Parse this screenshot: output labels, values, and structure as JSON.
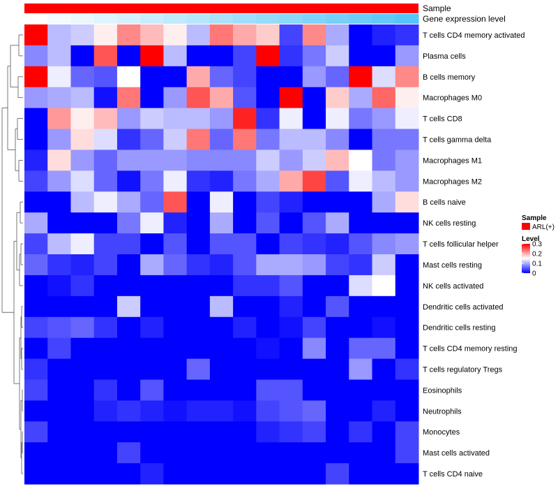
{
  "chart_data": {
    "type": "heatmap",
    "title": "",
    "annotations": [
      {
        "name": "Sample",
        "color": "#FF0000"
      },
      {
        "name": "Gene expression level",
        "gradient": [
          "#FFFFFF",
          "#4FC3F7"
        ]
      }
    ],
    "rows": [
      "T cells CD4 memory activated",
      "Plasma cells",
      "B cells memory",
      "Macrophages M0",
      "T cells CD8",
      "T cells gamma delta",
      "Macrophages M1",
      "Macrophages M2",
      "B cells naive",
      "NK cells resting",
      "T cells follicular helper",
      "Mast cells resting",
      "NK cells activated",
      "Dendritic cells activated",
      "Dendritic cells resting",
      "T cells CD4 memory resting",
      "T cells regulatory  Tregs",
      "Eosinophils",
      "Neutrophils",
      "Monocytes",
      "Mast cells activated",
      "T cells CD4 naive"
    ],
    "n_columns": 17,
    "values": [
      [
        0.3,
        0.11,
        0.12,
        0.16,
        0.22,
        0.19,
        0.16,
        0.11,
        0.23,
        0.2,
        0.18,
        0.04,
        0.22,
        0.1,
        0.0,
        0.02,
        0.03
      ],
      [
        0.08,
        0.11,
        0.0,
        0.25,
        0.0,
        0.3,
        0.11,
        0.0,
        0.0,
        0.04,
        0.3,
        0.03,
        0.07,
        0.12,
        0.0,
        0.0,
        0.09
      ],
      [
        0.3,
        0.14,
        0.06,
        0.05,
        0.15,
        0.0,
        0.0,
        0.2,
        0.06,
        0.04,
        0.0,
        0.0,
        0.09,
        0.06,
        0.3,
        0.13,
        0.22
      ],
      [
        0.09,
        0.1,
        0.11,
        0.01,
        0.23,
        0.0,
        0.09,
        0.25,
        0.2,
        0.05,
        0.0,
        0.3,
        0.0,
        0.18,
        0.1,
        0.24,
        0.16
      ],
      [
        0.0,
        0.21,
        0.16,
        0.19,
        0.09,
        0.12,
        0.11,
        0.11,
        0.09,
        0.28,
        0.03,
        0.14,
        0.0,
        0.14,
        0.07,
        0.09,
        0.14
      ],
      [
        0.0,
        0.09,
        0.17,
        0.13,
        0.03,
        0.06,
        0.12,
        0.23,
        0.06,
        0.23,
        0.07,
        0.11,
        0.11,
        0.08,
        0.0,
        0.07,
        0.07
      ],
      [
        0.02,
        0.17,
        0.09,
        0.06,
        0.09,
        0.09,
        0.09,
        0.08,
        0.08,
        0.08,
        0.12,
        0.09,
        0.12,
        0.19,
        0.15,
        0.07,
        0.09
      ],
      [
        0.04,
        0.09,
        0.13,
        0.06,
        0.01,
        0.07,
        0.14,
        0.03,
        0.02,
        0.07,
        0.1,
        0.2,
        0.26,
        0.05,
        0.14,
        0.11,
        0.09
      ],
      [
        0.0,
        0.0,
        0.11,
        0.14,
        0.1,
        0.06,
        0.25,
        0.0,
        0.14,
        0.0,
        0.04,
        0.02,
        0.0,
        0.0,
        0.0,
        0.1,
        0.17
      ],
      [
        0.1,
        0.0,
        0.0,
        0.0,
        0.07,
        0.14,
        0.02,
        0.0,
        0.1,
        0.0,
        0.05,
        0.0,
        0.05,
        0.1,
        0.0,
        0.0,
        0.0
      ],
      [
        0.04,
        0.11,
        0.14,
        0.04,
        0.04,
        0.0,
        0.05,
        0.0,
        0.05,
        0.05,
        0.0,
        0.04,
        0.03,
        0.02,
        0.05,
        0.08,
        0.09
      ],
      [
        0.06,
        0.03,
        0.02,
        0.04,
        0.0,
        0.1,
        0.06,
        0.03,
        0.02,
        0.05,
        0.1,
        0.1,
        0.09,
        0.04,
        0.03,
        0.12,
        0.0
      ],
      [
        0.0,
        0.01,
        0.03,
        0.0,
        0.0,
        0.0,
        0.0,
        0.0,
        0.0,
        0.03,
        0.03,
        0.05,
        0.0,
        0.0,
        0.13,
        0.15,
        0.0
      ],
      [
        0.0,
        0.0,
        0.0,
        0.0,
        0.12,
        0.0,
        0.0,
        0.0,
        0.11,
        0.0,
        0.0,
        0.02,
        0.0,
        0.05,
        0.0,
        0.0,
        0.0
      ],
      [
        0.04,
        0.05,
        0.06,
        0.03,
        0.0,
        0.02,
        0.0,
        0.0,
        0.0,
        0.02,
        0.0,
        0.01,
        0.04,
        0.0,
        0.0,
        0.01,
        0.0
      ],
      [
        0.0,
        0.04,
        0.0,
        0.0,
        0.0,
        0.0,
        0.0,
        0.0,
        0.0,
        0.0,
        0.01,
        0.0,
        0.08,
        0.0,
        0.06,
        0.06,
        0.0
      ],
      [
        0.03,
        0.0,
        0.0,
        0.0,
        0.0,
        0.0,
        0.0,
        0.06,
        0.0,
        0.0,
        0.0,
        0.0,
        0.0,
        0.0,
        0.09,
        0.0,
        0.03
      ],
      [
        0.04,
        0.0,
        0.0,
        0.03,
        0.0,
        0.05,
        0.0,
        0.0,
        0.0,
        0.0,
        0.05,
        0.05,
        0.0,
        0.0,
        0.0,
        0.0,
        0.0
      ],
      [
        0.0,
        0.0,
        0.0,
        0.02,
        0.03,
        0.02,
        0.01,
        0.02,
        0.02,
        0.01,
        0.04,
        0.05,
        0.06,
        0.0,
        0.0,
        0.02,
        0.0
      ],
      [
        0.04,
        0.0,
        0.0,
        0.0,
        0.0,
        0.0,
        0.0,
        0.0,
        0.0,
        0.0,
        0.02,
        0.03,
        0.04,
        0.0,
        0.03,
        0.0,
        0.04
      ],
      [
        0.0,
        0.0,
        0.0,
        0.0,
        0.04,
        0.0,
        0.0,
        0.0,
        0.0,
        0.0,
        0.0,
        0.0,
        0.0,
        0.0,
        0.0,
        0.0,
        0.04
      ],
      [
        0.0,
        0.0,
        0.0,
        0.0,
        0.0,
        0.02,
        0.0,
        0.0,
        0.0,
        0.0,
        0.0,
        0.0,
        0.0,
        0.04,
        0.0,
        0.0,
        0.0
      ]
    ],
    "gene_expression": [
      0.0,
      0.06,
      0.12,
      0.18,
      0.24,
      0.3,
      0.36,
      0.42,
      0.48,
      0.54,
      0.6,
      0.66,
      0.72,
      0.78,
      0.84,
      0.9,
      0.96
    ],
    "color_scale": {
      "low": "#0000FF",
      "mid": "#FFFFFF",
      "high": "#FF0000",
      "min": 0,
      "mid_value": 0.15,
      "max": 0.3
    },
    "legend": {
      "sample_title": "Sample",
      "sample_entries": [
        {
          "label": "ARL(+)",
          "color": "#FF0000"
        }
      ],
      "level_title": "Level",
      "level_ticks": [
        {
          "value": 0.3,
          "label": "0.3"
        },
        {
          "value": 0.2,
          "label": "0.2"
        },
        {
          "value": 0.1,
          "label": "0.1"
        },
        {
          "value": 0,
          "label": "0"
        }
      ]
    },
    "dendrogram": "row"
  }
}
